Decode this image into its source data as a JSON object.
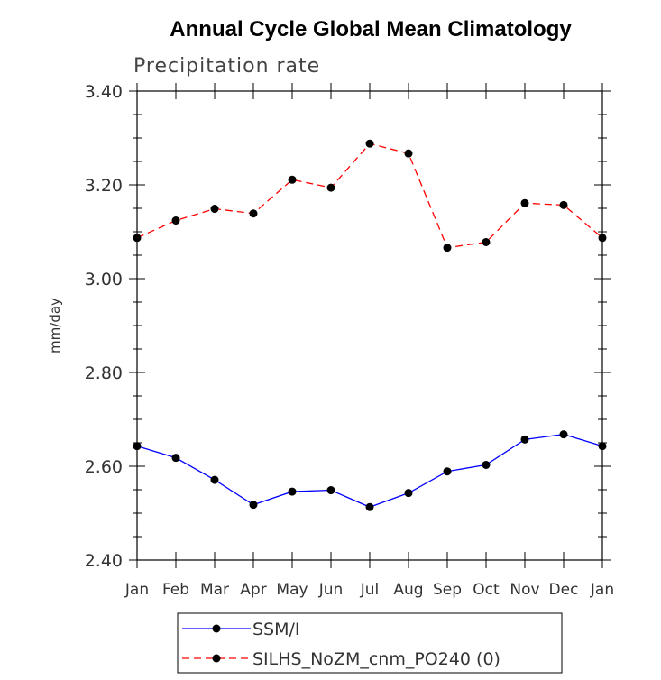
{
  "chart_data": {
    "type": "line",
    "title": "Annual Cycle Global Mean Climatology",
    "subtitle": "Precipitation rate",
    "ylabel": "mm/day",
    "xlabel": "",
    "ylim": [
      2.4,
      3.4
    ],
    "yticks": [
      "2.40",
      "2.60",
      "2.80",
      "3.00",
      "3.20",
      "3.40"
    ],
    "categories": [
      "Jan",
      "Feb",
      "Mar",
      "Apr",
      "May",
      "Jun",
      "Jul",
      "Aug",
      "Sep",
      "Oct",
      "Nov",
      "Dec",
      "Jan"
    ],
    "series": [
      {
        "name": "SSM/I",
        "color": "#0000ff",
        "dash": "solid",
        "values": [
          2.643,
          2.618,
          2.571,
          2.518,
          2.546,
          2.549,
          2.513,
          2.543,
          2.589,
          2.603,
          2.657,
          2.668,
          2.643
        ]
      },
      {
        "name": "SILHS_NoZM_cnm_PO240 (0)",
        "color": "#ff0000",
        "dash": "dashed",
        "values": [
          3.087,
          3.124,
          3.149,
          3.139,
          3.211,
          3.194,
          3.288,
          3.267,
          3.066,
          3.078,
          3.161,
          3.157,
          3.087
        ]
      }
    ],
    "grid": false,
    "legend_position": "bottom-left"
  }
}
